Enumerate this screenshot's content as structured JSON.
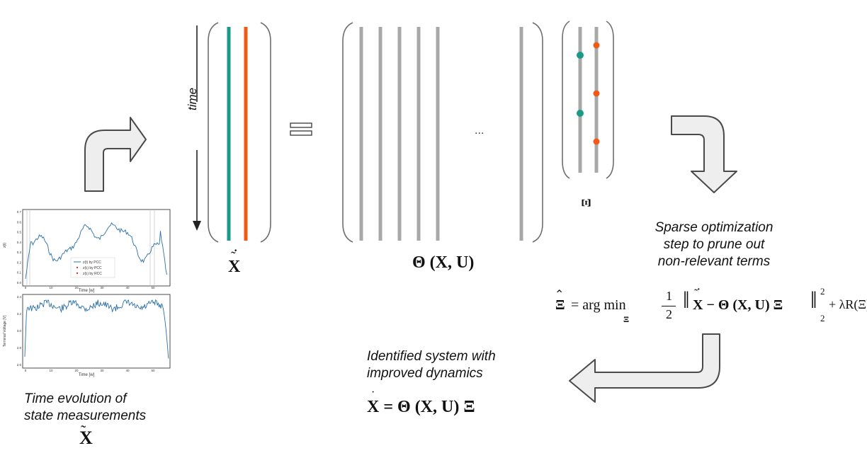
{
  "time_label": "time",
  "ellipsis": "...",
  "captions": {
    "time_evolution_line1": "Time evolution of",
    "time_evolution_line2": "state measurements",
    "sparse_line1": "Sparse optimization",
    "sparse_line2": "step to prune out",
    "sparse_line3": "non-relevant terms",
    "identified_line1": "Identified system with",
    "identified_line2": "improved dynamics"
  },
  "symbols": {
    "x_tilde": "X",
    "x_dot_tilde": "X",
    "theta": "Θ (X, U)",
    "xi": "Ξ"
  },
  "equations": {
    "optimization_lhs": "Ξ",
    "optimization_eq": "= arg min",
    "optimization_sub": "Ξ",
    "optimization_half_num": "1",
    "optimization_half_den": "2",
    "optimization_norm_body": "X − Θ (X, U) Ξ",
    "optimization_sup": "2",
    "optimization_sub2": "2",
    "optimization_reg": "+ λR(Ξ)",
    "identified_lhs": "X",
    "identified_rhs": "= Θ (X, U) Ξ"
  },
  "plot_top": {
    "ylabel": "z(t)",
    "xlabel": "Time [w]",
    "yticks": [
      "0.7",
      "0.6",
      "0.5",
      "0.4",
      "0.3",
      "0.2",
      "0.1",
      "0.0"
    ],
    "xticks": [
      "0",
      "10",
      "20",
      "30",
      "40",
      "50"
    ],
    "legend": [
      "z(t) by PCC",
      "z(tᵢ) by PCC",
      "z(tᵢ) by RCC"
    ]
  },
  "plot_bottom": {
    "ylabel": "Terminal Voltage [V]",
    "xlabel": "Time [w]",
    "yticks": [
      "3.4",
      "3.2",
      "3.0",
      "2.8",
      "2.6"
    ],
    "xticks": [
      "0",
      "10",
      "20",
      "30",
      "40",
      "50"
    ]
  },
  "colors": {
    "teal": "#1a9a8a",
    "orange": "#f05a14",
    "column_gray": "#a8a8a8",
    "bracket": "#6e6e6e",
    "arrow_fill": "#eeeeee",
    "arrow_stroke": "#4a4a4a",
    "trace": "#2a6fa8"
  }
}
